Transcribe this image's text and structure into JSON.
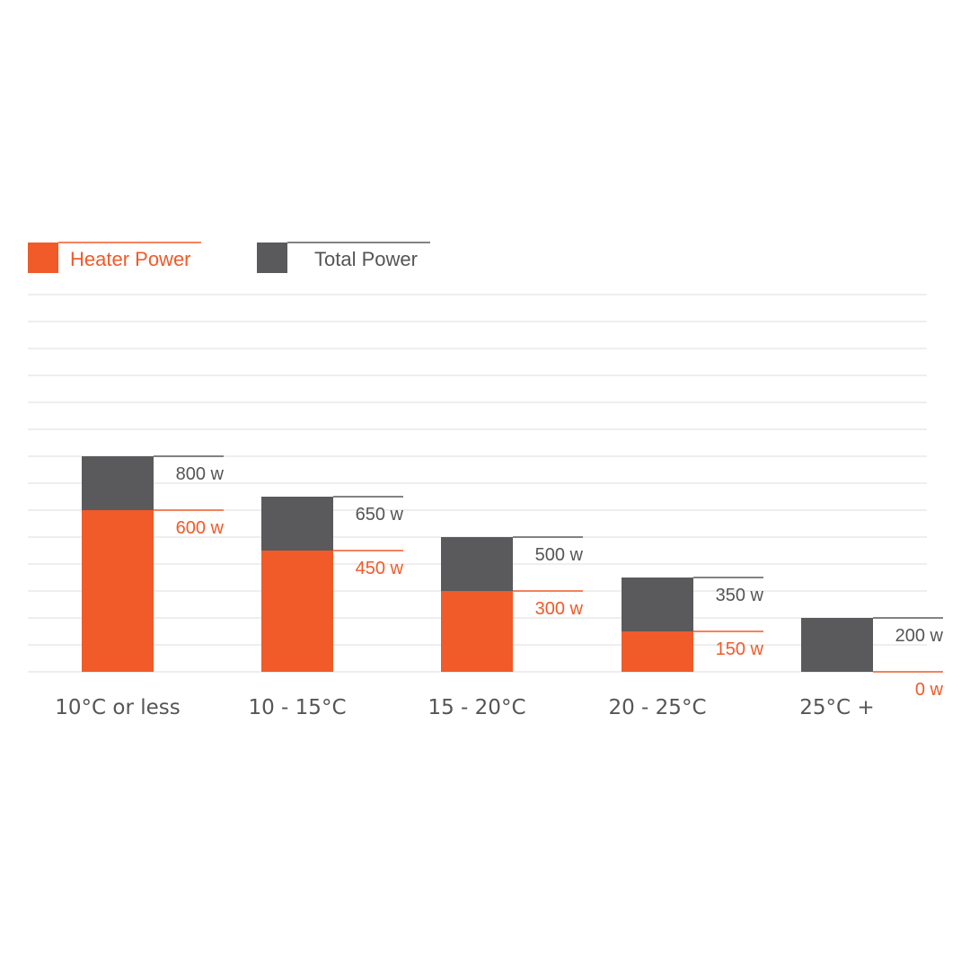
{
  "chart_data": {
    "type": "bar",
    "stacked": true,
    "categories": [
      "10°C or less",
      "10 - 15°C",
      "15 - 20°C",
      "20 - 25°C",
      "25°C +"
    ],
    "series": [
      {
        "name": "Heater Power",
        "values": [
          600,
          450,
          300,
          150,
          0
        ],
        "color": "#f15a29"
      },
      {
        "name": "Total Power",
        "values": [
          800,
          650,
          500,
          350,
          200
        ],
        "color": "#5a5a5c"
      }
    ],
    "value_labels": {
      "heater": [
        "600 w",
        "450 w",
        "300 w",
        "150 w",
        "0 w"
      ],
      "total": [
        "800 w",
        "650 w",
        "500 w",
        "350 w",
        "200 w"
      ]
    },
    "ylim": [
      0,
      1400
    ],
    "grid": true,
    "legend_position": "top-left"
  },
  "colors": {
    "heater": "#f15a29",
    "total": "#5a5a5c",
    "grid": "#e4e4e4",
    "total_label": "#555555"
  }
}
